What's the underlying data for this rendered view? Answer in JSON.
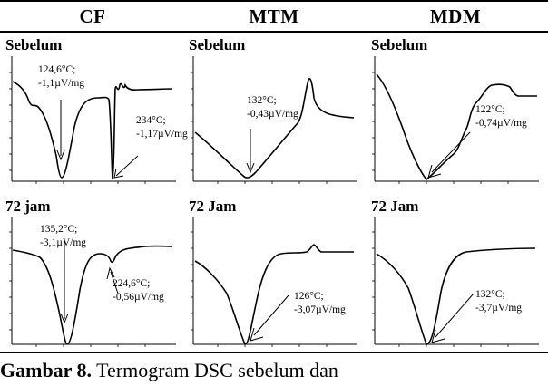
{
  "columns": [
    "CF",
    "MTM",
    "MDM"
  ],
  "rows": [
    "Sebelum",
    "72 jam"
  ],
  "panels": {
    "cf_before": {
      "label": "Sebelum",
      "annotations": [
        {
          "text": "124,6°C;\n-1,1µV/mg"
        },
        {
          "text": "234°C;\n-1,17µV/mg"
        }
      ]
    },
    "mtm_before": {
      "label": "Sebelum",
      "annotations": [
        {
          "text": "132°C;\n-0,43µV/mg"
        }
      ]
    },
    "mdm_before": {
      "label": "Sebelum",
      "annotations": [
        {
          "text": "122°C;\n-0,74µV/mg"
        }
      ]
    },
    "cf_after": {
      "label": "72 jam",
      "annotations": [
        {
          "text": "135,2°C;\n-3,1µV/mg"
        },
        {
          "text": "224,6°C;\n-0,56µV/mg"
        }
      ]
    },
    "mtm_after": {
      "label": "72 Jam",
      "annotations": [
        {
          "text": "126°C;\n-3,07µV/mg"
        }
      ]
    },
    "mdm_after": {
      "label": "72 Jam",
      "annotations": [
        {
          "text": "132°C;\n-3,7µV/mg"
        }
      ]
    }
  },
  "caption": {
    "label": "Gambar 8.",
    "text": "Termogram DSC sebelum dan"
  }
}
